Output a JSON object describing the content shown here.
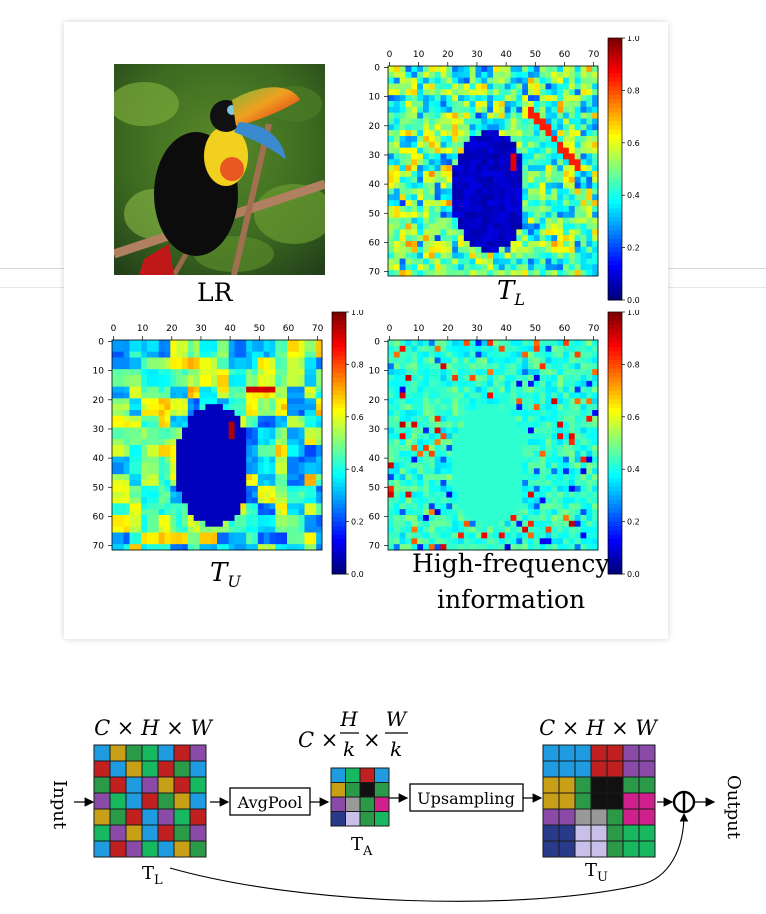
{
  "figure": {
    "panels": [
      {
        "id": "lr",
        "caption": "LR"
      },
      {
        "id": "tl",
        "caption_main": "T",
        "caption_sub": "L",
        "ticks": [
          "0",
          "10",
          "20",
          "30",
          "40",
          "50",
          "60",
          "70"
        ],
        "cbar_ticks": [
          "1.0",
          "0.8",
          "0.6",
          "0.4",
          "0.2",
          "0.0"
        ]
      },
      {
        "id": "tu",
        "caption_main": "T",
        "caption_sub": "U",
        "ticks": [
          "0",
          "10",
          "20",
          "30",
          "40",
          "50",
          "60",
          "70"
        ],
        "cbar_ticks": [
          "1.0",
          "0.8",
          "0.6",
          "0.4",
          "0.2",
          "0.0"
        ]
      },
      {
        "id": "hf",
        "caption_line1": "High-frequency",
        "caption_line2": "information",
        "ticks": [
          "0",
          "10",
          "20",
          "30",
          "40",
          "50",
          "60",
          "70"
        ],
        "cbar_ticks": [
          "1.0",
          "0.8",
          "0.6",
          "0.4",
          "0.2",
          "0.0"
        ]
      }
    ]
  },
  "diagram": {
    "input_label": "Input",
    "output_label": "Output",
    "tl_dims": "C × H × W",
    "ta_dims_prefix": "C ×",
    "ta_h": "H",
    "ta_w": "W",
    "ta_k": "k",
    "tu_dims": "C × H × W",
    "avgpool_label": "AvgPool",
    "upsampling_label": "Upsampling",
    "tl_name_main": "T",
    "tl_name_sub": "L",
    "ta_name_main": "T",
    "ta_name_sub": "A",
    "tu_name_main": "T",
    "tu_name_sub": "U",
    "op_symbol": "⊖",
    "colors": {
      "tl_grid": [
        "#1f9be0",
        "#c8a018",
        "#2a9a48",
        "#17b860",
        "#1f9be0",
        "#c02020",
        "#8a4aa8",
        "#c02020",
        "#1f9be0",
        "#c8a018",
        "#17b860",
        "#c02020",
        "#2a9a48",
        "#1f9be0",
        "#2a9a48",
        "#c02020",
        "#1f9be0",
        "#8a4aa8",
        "#c8a018",
        "#c02020",
        "#17b860",
        "#8a4aa8",
        "#17b860",
        "#1f9be0",
        "#c02020",
        "#2a9a48",
        "#c8a018",
        "#1f9be0",
        "#c8a018",
        "#2a9a48",
        "#c02020",
        "#1f9be0",
        "#8a4aa8",
        "#17b860",
        "#c02020",
        "#17b860",
        "#8a4aa8",
        "#c8a018",
        "#1f9be0",
        "#c02020",
        "#2a9a48",
        "#8a4aa8",
        "#1f9be0",
        "#c02020",
        "#8a4aa8",
        "#17b860",
        "#1f9be0",
        "#c8a018",
        "#2a9a48"
      ],
      "ta_grid": [
        "#1f9be0",
        "#17b860",
        "#c02020",
        "#1f9be0",
        "#c8a018",
        "#2a9a48",
        "#111111",
        "#2a9a48",
        "#8a4aa8",
        "#999999",
        "#2a9a48",
        "#d0208c",
        "#2a3a8a",
        "#c8c0e8",
        "#2a9a48",
        "#17b860"
      ],
      "tu_grid": [
        "#1f9be0",
        "#1f9be0",
        "#1f9be0",
        "#c02020",
        "#c02020",
        "#8a4aa8",
        "#8a4aa8",
        "#1f9be0",
        "#1f9be0",
        "#1f9be0",
        "#c02020",
        "#c02020",
        "#8a4aa8",
        "#8a4aa8",
        "#c8a018",
        "#c8a018",
        "#2a9a48",
        "#111111",
        "#111111",
        "#2a9a48",
        "#2a9a48",
        "#c8a018",
        "#c8a018",
        "#2a9a48",
        "#111111",
        "#111111",
        "#d0208c",
        "#d0208c",
        "#8a4aa8",
        "#8a4aa8",
        "#999999",
        "#999999",
        "#2a9a48",
        "#d0208c",
        "#d0208c",
        "#2a3a8a",
        "#2a3a8a",
        "#c8c0e8",
        "#c8c0e8",
        "#2a9a48",
        "#17b860",
        "#17b860",
        "#2a3a8a",
        "#2a3a8a",
        "#c8c0e8",
        "#c8c0e8",
        "#2a9a48",
        "#17b860",
        "#17b860"
      ]
    }
  }
}
